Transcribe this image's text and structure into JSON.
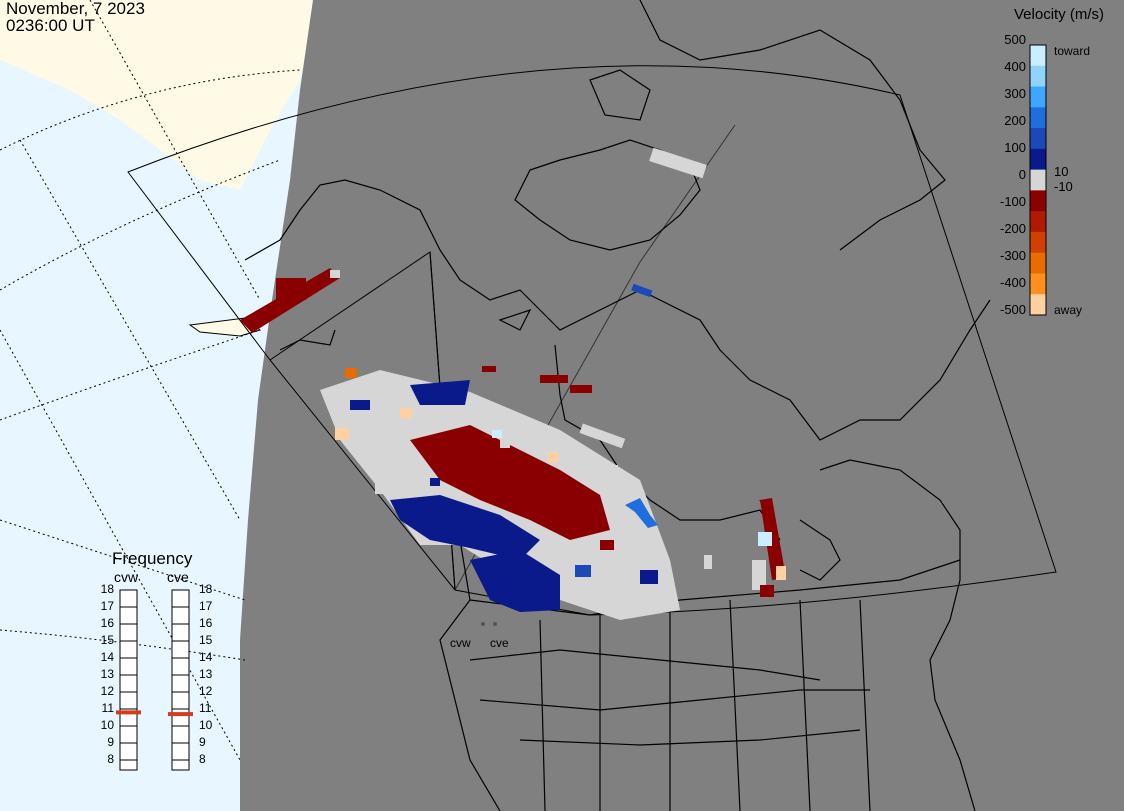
{
  "header": {
    "date": "November, 7 2023",
    "time": "0236:00 UT"
  },
  "colorbar": {
    "title": "Velocity (m/s)",
    "ticks": [
      "500",
      "400",
      "300",
      "200",
      "100",
      "10",
      "0",
      "-10",
      "-100",
      "-200",
      "-300",
      "-400",
      "-500"
    ],
    "toward_label": "toward",
    "away_label": "away",
    "colors": [
      "#c8eeff",
      "#8fd4ff",
      "#3fa6ff",
      "#1e6fdd",
      "#1c48b8",
      "#0a1a8a",
      "#d6d6d6",
      "#8a0000",
      "#b01b00",
      "#d04000",
      "#e86c00",
      "#ff9020",
      "#ffd0a0"
    ]
  },
  "frequency_panel": {
    "title": "Frequency",
    "radars": [
      {
        "code": "cvw",
        "frequency_mhz": 10.8
      },
      {
        "code": "cve",
        "frequency_mhz": 10.7
      }
    ],
    "scale": [
      "18",
      "17",
      "16",
      "15",
      "14",
      "13",
      "12",
      "11",
      "10",
      "9",
      "8"
    ],
    "marker_color": "#d43d1a"
  },
  "site_labels": [
    "cvw",
    "cve"
  ],
  "map_colors": {
    "ocean": "#e8f6ff",
    "land": "#fffae6",
    "night": "#808080",
    "coast": "#000000"
  }
}
